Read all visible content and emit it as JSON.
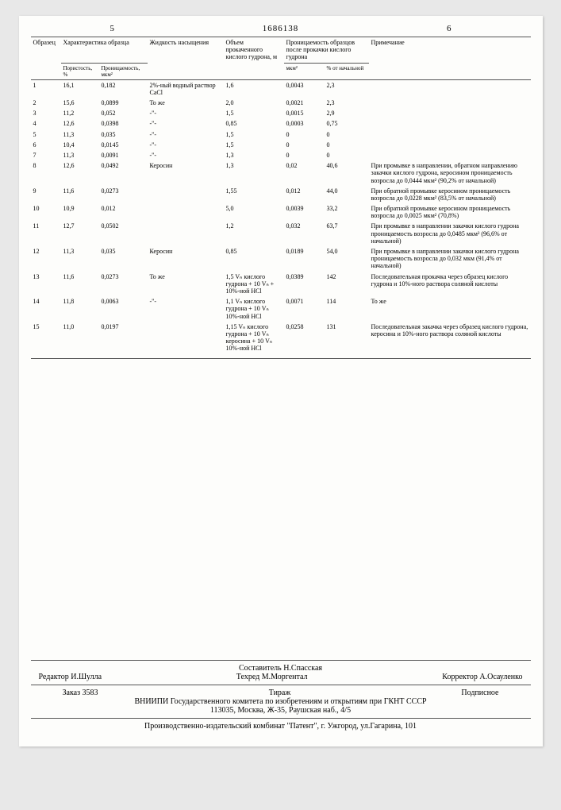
{
  "header": {
    "col_left": "5",
    "doc_number": "1686138",
    "col_right": "6"
  },
  "table": {
    "headers": {
      "sample": "Образец",
      "characteristic": "Характеристика образца",
      "porosity": "Пористость, %",
      "permeability": "Проницаемость, мкм²",
      "liquid": "Жидкость насыщения",
      "volume": "Объем прокаченного кислого гудрона, м",
      "perm_after": "Проницаемость образцов после прокачки кислого гудрона",
      "mkm2": "мкм²",
      "pct_initial": "% от начальной",
      "note": "Примечание"
    },
    "rows": [
      {
        "n": "1",
        "por": "16,1",
        "perm": "0,182",
        "liq": "2%-ный водный раствор CaCl",
        "vol": "1,6",
        "p2": "0,0043",
        "pct": "2,3",
        "note": ""
      },
      {
        "n": "2",
        "por": "15,6",
        "perm": "0,0899",
        "liq": "То же",
        "vol": "2,0",
        "p2": "0,0021",
        "pct": "2,3",
        "note": ""
      },
      {
        "n": "3",
        "por": "11,2",
        "perm": "0,052",
        "liq": "-\"-",
        "vol": "1,5",
        "p2": "0,0015",
        "pct": "2,9",
        "note": ""
      },
      {
        "n": "4",
        "por": "12,6",
        "perm": "0,0398",
        "liq": "-\"-",
        "vol": "0,85",
        "p2": "0,0003",
        "pct": "0,75",
        "note": ""
      },
      {
        "n": "5",
        "por": "11,3",
        "perm": "0,035",
        "liq": "-\"-",
        "vol": "1,5",
        "p2": "0",
        "pct": "0",
        "note": ""
      },
      {
        "n": "6",
        "por": "10,4",
        "perm": "0,0145",
        "liq": "-\"-",
        "vol": "1,5",
        "p2": "0",
        "pct": "0",
        "note": ""
      },
      {
        "n": "7",
        "por": "11,3",
        "perm": "0,0091",
        "liq": "-\"-",
        "vol": "1,3",
        "p2": "0",
        "pct": "0",
        "note": ""
      },
      {
        "n": "8",
        "por": "12,6",
        "perm": "0,0492",
        "liq": "Керосин",
        "vol": "1,3",
        "p2": "0,02",
        "pct": "40,6",
        "note": "При промывке в направлении, обратном направлению закачки кислого гудрона, керосином проницаемость возросла до 0,0444 мкм² (90,2% от начальной)"
      },
      {
        "n": "9",
        "por": "11,6",
        "perm": "0,0273",
        "liq": "",
        "vol": "1,55",
        "p2": "0,012",
        "pct": "44,0",
        "note": "При обратной промывке керосином проницаемость возросла до 0,0228 мкм² (83,5% от начальной)"
      },
      {
        "n": "10",
        "por": "10,9",
        "perm": "0,012",
        "liq": "",
        "vol": "5,0",
        "p2": "0,0039",
        "pct": "33,2",
        "note": "При обратной промывке керосином проницаемость возросла до 0,0025 мкм² (70,8%)"
      },
      {
        "n": "11",
        "por": "12,7",
        "perm": "0,0502",
        "liq": "",
        "vol": "1,2",
        "p2": "0,032",
        "pct": "63,7",
        "note": "При промывке в направлении закачки кислого гудрона проницаемость возросла до 0,0485 мкм² (96,6% от начальной)"
      },
      {
        "n": "12",
        "por": "11,3",
        "perm": "0,035",
        "liq": "Керосин",
        "vol": "0,85",
        "p2": "0,0189",
        "pct": "54,0",
        "note": "При промывке в направлении закачки кислого гудрона проницаемость возросла до 0,032 мкм (91,4% от начальной)"
      },
      {
        "n": "13",
        "por": "11,6",
        "perm": "0,0273",
        "liq": "То же",
        "vol": "1,5 Vₙ кислого гудрона + 10 Vₙ + 10%-ной HCl",
        "p2": "0,0389",
        "pct": "142",
        "note": "Последовательная прокачка через образец кислого гудрона и 10%-ного раствора соляной кислоты"
      },
      {
        "n": "14",
        "por": "11,8",
        "perm": "0,0063",
        "liq": "-\"-",
        "vol": "1,1 Vₙ кислого гудрона + 10 Vₙ 10%-ной HCl",
        "p2": "0,0071",
        "pct": "114",
        "note": "То же"
      },
      {
        "n": "15",
        "por": "11,0",
        "perm": "0,0197",
        "liq": "",
        "vol": "1,15 Vₙ кислого гудрона + 10 Vₙ керосина + 10 Vₙ 10%-ной HCl",
        "p2": "0,0258",
        "pct": "131",
        "note": "Последовательная закачка через образец кислого гудрона, керосина и 10%-ного раствора соляной кислоты"
      }
    ]
  },
  "footer": {
    "compiler": "Составитель Н.Спасская",
    "editor": "Редактор И.Шулла",
    "tehred": "Техред М.Моргентал",
    "corrector": "Корректор А.Осауленко",
    "order": "Заказ 3583",
    "tirazh": "Тираж",
    "podpisnoe": "Подписное",
    "org": "ВНИИПИ Государственного комитета по изобретениям и открытиям при ГКНТ СССР",
    "address": "113035, Москва, Ж-35, Раушская наб., 4/5",
    "printer": "Производственно-издательский комбинат \"Патент\", г. Ужгород, ул.Гагарина, 101"
  }
}
